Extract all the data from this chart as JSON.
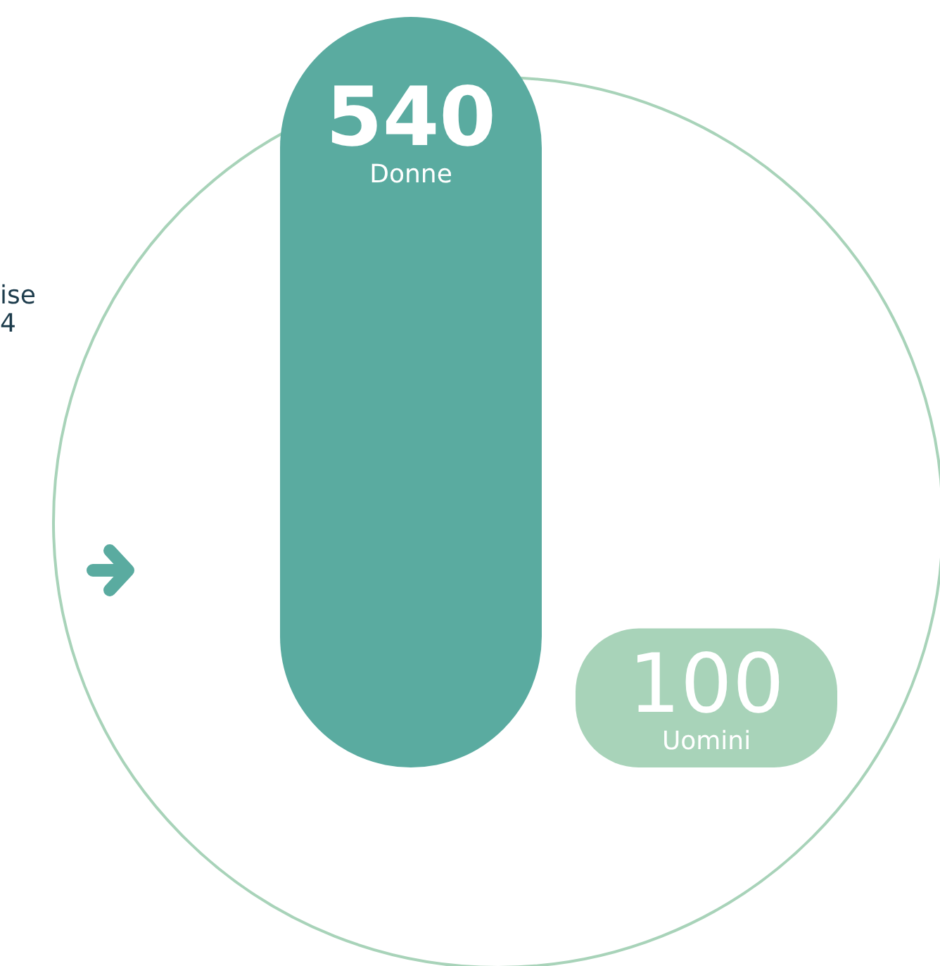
{
  "chart_data": {
    "type": "bar",
    "categories": [
      "Donne",
      "Uomini"
    ],
    "values": [
      540,
      100
    ],
    "colors": [
      "#5aaba0",
      "#a8d3b9"
    ],
    "data_labels": true,
    "annotations": [
      "ise\n4"
    ]
  }
}
